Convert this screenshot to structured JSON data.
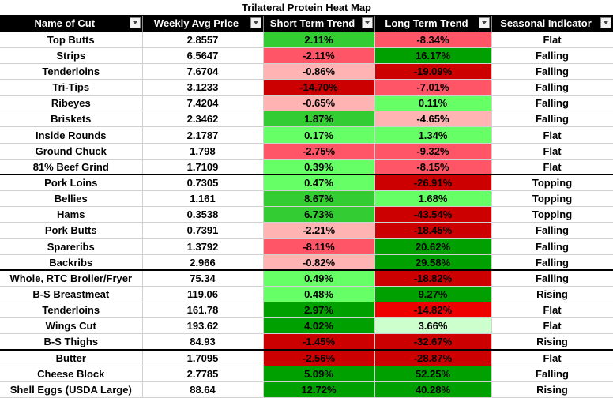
{
  "title": "Trilateral Protein Heat Map",
  "headers": [
    "Name of Cut",
    "Weekly Avg Price",
    "Short Term Trend",
    "Long Term Trend",
    "Seasonal Indicator"
  ],
  "heat_colors": {
    "strong_green": "#00a000",
    "green": "#33cc33",
    "light_green": "#66ff66",
    "pale_green": "#ccffcc",
    "pale_red": "#ffb3b3",
    "pink_red": "#ff5566",
    "red": "#ee0000",
    "dark_red": "#cc0000"
  },
  "rows": [
    {
      "name": "Top Butts",
      "price": "2.8557",
      "short": "2.11%",
      "short_color": "green",
      "long": "-8.34%",
      "long_color": "pink_red",
      "season": "Flat"
    },
    {
      "name": "Strips",
      "price": "6.5647",
      "short": "-2.11%",
      "short_color": "pink_red",
      "long": "16.17%",
      "long_color": "strong_green",
      "season": "Falling"
    },
    {
      "name": "Tenderloins",
      "price": "7.6704",
      "short": "-0.86%",
      "short_color": "pale_red",
      "long": "-19.09%",
      "long_color": "dark_red",
      "season": "Falling"
    },
    {
      "name": "Tri-Tips",
      "price": "3.1233",
      "short": "-14.70%",
      "short_color": "dark_red",
      "long": "-7.01%",
      "long_color": "pink_red",
      "season": "Falling"
    },
    {
      "name": "Ribeyes",
      "price": "7.4204",
      "short": "-0.65%",
      "short_color": "pale_red",
      "long": "0.11%",
      "long_color": "light_green",
      "season": "Falling"
    },
    {
      "name": "Briskets",
      "price": "2.3462",
      "short": "1.87%",
      "short_color": "green",
      "long": "-4.65%",
      "long_color": "pale_red",
      "season": "Falling"
    },
    {
      "name": "Inside Rounds",
      "price": "2.1787",
      "short": "0.17%",
      "short_color": "light_green",
      "long": "1.34%",
      "long_color": "light_green",
      "season": "Flat"
    },
    {
      "name": "Ground Chuck",
      "price": "1.798",
      "short": "-2.75%",
      "short_color": "pink_red",
      "long": "-9.32%",
      "long_color": "pink_red",
      "season": "Flat"
    },
    {
      "name": "81% Beef Grind",
      "price": "1.7109",
      "short": "0.39%",
      "short_color": "light_green",
      "long": "-8.15%",
      "long_color": "pink_red",
      "season": "Flat"
    },
    {
      "name": "Pork Loins",
      "price": "0.7305",
      "short": "0.47%",
      "short_color": "light_green",
      "long": "-26.91%",
      "long_color": "dark_red",
      "season": "Topping"
    },
    {
      "name": "Bellies",
      "price": "1.161",
      "short": "8.67%",
      "short_color": "green",
      "long": "1.68%",
      "long_color": "light_green",
      "season": "Topping"
    },
    {
      "name": "Hams",
      "price": "0.3538",
      "short": "6.73%",
      "short_color": "green",
      "long": "-43.54%",
      "long_color": "dark_red",
      "season": "Topping"
    },
    {
      "name": "Pork Butts",
      "price": "0.7391",
      "short": "-2.21%",
      "short_color": "pale_red",
      "long": "-18.45%",
      "long_color": "dark_red",
      "season": "Falling"
    },
    {
      "name": "Spareribs",
      "price": "1.3792",
      "short": "-8.11%",
      "short_color": "pink_red",
      "long": "20.62%",
      "long_color": "strong_green",
      "season": "Falling"
    },
    {
      "name": "Backribs",
      "price": "2.966",
      "short": "-0.82%",
      "short_color": "pale_red",
      "long": "29.58%",
      "long_color": "strong_green",
      "season": "Falling"
    },
    {
      "name": "Whole, RTC Broiler/Fryer",
      "price": "75.34",
      "short": "0.49%",
      "short_color": "light_green",
      "long": "-18.82%",
      "long_color": "dark_red",
      "season": "Falling"
    },
    {
      "name": "B-S Breastmeat",
      "price": "119.06",
      "short": "0.48%",
      "short_color": "light_green",
      "long": "9.27%",
      "long_color": "strong_green",
      "season": "Rising"
    },
    {
      "name": "Tenderloins",
      "price": "161.78",
      "short": "2.97%",
      "short_color": "strong_green",
      "long": "-14.82%",
      "long_color": "red",
      "season": "Flat"
    },
    {
      "name": "Wings Cut",
      "price": "193.62",
      "short": "4.02%",
      "short_color": "strong_green",
      "long": "3.66%",
      "long_color": "pale_green",
      "season": "Flat"
    },
    {
      "name": "B-S Thighs",
      "price": "84.93",
      "short": "-1.45%",
      "short_color": "dark_red",
      "long": "-32.67%",
      "long_color": "dark_red",
      "season": "Rising"
    },
    {
      "name": "Butter",
      "price": "1.7095",
      "short": "-2.56%",
      "short_color": "dark_red",
      "long": "-28.87%",
      "long_color": "dark_red",
      "season": "Flat"
    },
    {
      "name": "Cheese Block",
      "price": "2.7785",
      "short": "5.09%",
      "short_color": "strong_green",
      "long": "52.25%",
      "long_color": "strong_green",
      "season": "Falling"
    },
    {
      "name": "Shell Eggs (USDA Large)",
      "price": "88.64",
      "short": "12.72%",
      "short_color": "strong_green",
      "long": "40.28%",
      "long_color": "strong_green",
      "season": "Rising"
    }
  ]
}
